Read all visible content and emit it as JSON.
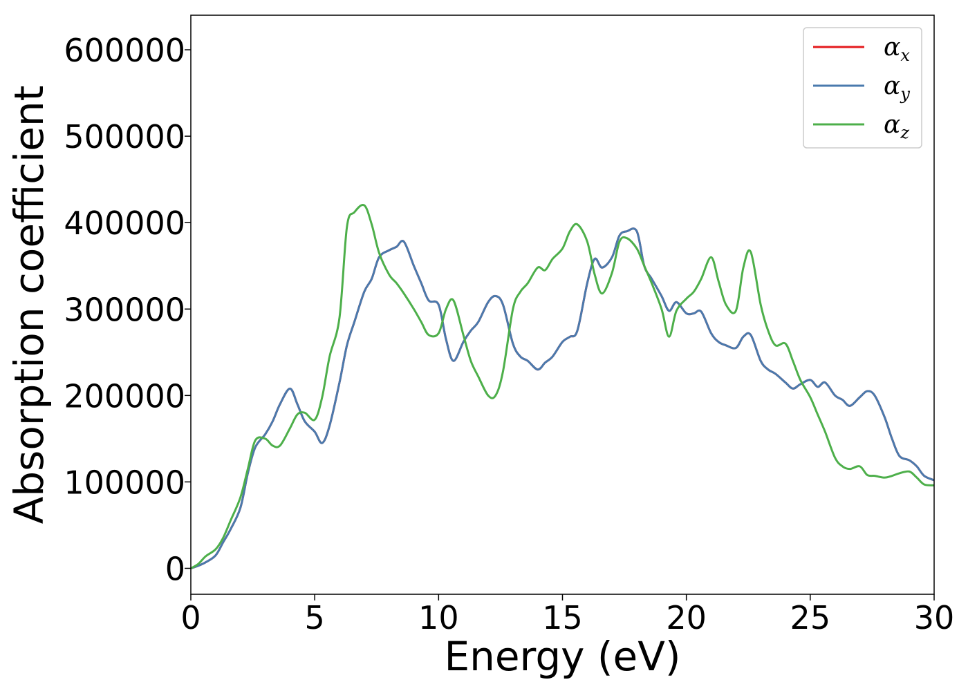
{
  "chart_data": {
    "type": "line",
    "title": "",
    "xlabel": "Energy (eV)",
    "ylabel": "Absorption coefficient",
    "xlim": [
      0,
      30
    ],
    "ylim": [
      -30000,
      640000
    ],
    "xticks": [
      0,
      5,
      10,
      15,
      20,
      25,
      30
    ],
    "xtick_labels": [
      "0",
      "5",
      "10",
      "15",
      "20",
      "25",
      "30"
    ],
    "yticks": [
      0,
      100000,
      200000,
      300000,
      400000,
      500000,
      600000
    ],
    "ytick_labels": [
      "0",
      "100000",
      "200000",
      "300000",
      "400000",
      "500000",
      "600000"
    ],
    "grid": false,
    "legend_position": "top-right",
    "series": [
      {
        "name": "α",
        "subscript": "x",
        "color": "#e41a1c",
        "x": [
          0,
          0.3,
          0.6,
          1.0,
          1.3,
          1.6,
          2.0,
          2.3,
          2.6,
          3.0,
          3.3,
          3.6,
          4.0,
          4.3,
          4.6,
          5.0,
          5.3,
          5.6,
          6.0,
          6.3,
          6.6,
          7.0,
          7.3,
          7.6,
          8.0,
          8.3,
          8.6,
          9.0,
          9.3,
          9.6,
          10.0,
          10.3,
          10.6,
          11.0,
          11.3,
          11.6,
          12.0,
          12.3,
          12.6,
          13.0,
          13.3,
          13.6,
          14.0,
          14.3,
          14.6,
          15.0,
          15.3,
          15.6,
          16.0,
          16.3,
          16.6,
          17.0,
          17.3,
          17.6,
          18.0,
          18.3,
          18.6,
          19.0,
          19.3,
          19.6,
          20.0,
          20.3,
          20.6,
          21.0,
          21.3,
          21.6,
          22.0,
          22.3,
          22.6,
          23.0,
          23.3,
          23.6,
          24.0,
          24.3,
          24.6,
          25.0,
          25.3,
          25.6,
          26.0,
          26.3,
          26.6,
          27.0,
          27.3,
          27.6,
          28.0,
          28.3,
          28.6,
          29.0,
          29.3,
          29.6,
          30.0
        ],
        "y": [
          0,
          3000,
          7000,
          15000,
          30000,
          45000,
          70000,
          110000,
          140000,
          155000,
          170000,
          190000,
          208000,
          190000,
          170000,
          158000,
          145000,
          165000,
          215000,
          258000,
          285000,
          320000,
          335000,
          360000,
          368000,
          372000,
          378000,
          350000,
          330000,
          310000,
          305000,
          265000,
          240000,
          262000,
          275000,
          285000,
          308000,
          315000,
          305000,
          260000,
          245000,
          240000,
          230000,
          238000,
          245000,
          262000,
          268000,
          275000,
          330000,
          358000,
          348000,
          360000,
          385000,
          390000,
          390000,
          350000,
          335000,
          315000,
          298000,
          308000,
          295000,
          295000,
          297000,
          272000,
          262000,
          258000,
          255000,
          268000,
          270000,
          240000,
          230000,
          225000,
          215000,
          208000,
          213000,
          218000,
          210000,
          215000,
          200000,
          195000,
          188000,
          198000,
          205000,
          200000,
          175000,
          150000,
          130000,
          125000,
          118000,
          107000,
          102000
        ]
      },
      {
        "name": "α",
        "subscript": "y",
        "color": "#4a7aad",
        "x": [
          0,
          0.3,
          0.6,
          1.0,
          1.3,
          1.6,
          2.0,
          2.3,
          2.6,
          3.0,
          3.3,
          3.6,
          4.0,
          4.3,
          4.6,
          5.0,
          5.3,
          5.6,
          6.0,
          6.3,
          6.6,
          7.0,
          7.3,
          7.6,
          8.0,
          8.3,
          8.6,
          9.0,
          9.3,
          9.6,
          10.0,
          10.3,
          10.6,
          11.0,
          11.3,
          11.6,
          12.0,
          12.3,
          12.6,
          13.0,
          13.3,
          13.6,
          14.0,
          14.3,
          14.6,
          15.0,
          15.3,
          15.6,
          16.0,
          16.3,
          16.6,
          17.0,
          17.3,
          17.6,
          18.0,
          18.3,
          18.6,
          19.0,
          19.3,
          19.6,
          20.0,
          20.3,
          20.6,
          21.0,
          21.3,
          21.6,
          22.0,
          22.3,
          22.6,
          23.0,
          23.3,
          23.6,
          24.0,
          24.3,
          24.6,
          25.0,
          25.3,
          25.6,
          26.0,
          26.3,
          26.6,
          27.0,
          27.3,
          27.6,
          28.0,
          28.3,
          28.6,
          29.0,
          29.3,
          29.6,
          30.0
        ],
        "y": [
          0,
          3000,
          7000,
          15000,
          30000,
          45000,
          70000,
          110000,
          140000,
          155000,
          170000,
          190000,
          208000,
          190000,
          170000,
          158000,
          145000,
          165000,
          215000,
          258000,
          285000,
          320000,
          335000,
          360000,
          368000,
          372000,
          378000,
          350000,
          330000,
          310000,
          305000,
          265000,
          240000,
          262000,
          275000,
          285000,
          308000,
          315000,
          305000,
          260000,
          245000,
          240000,
          230000,
          238000,
          245000,
          262000,
          268000,
          275000,
          330000,
          358000,
          348000,
          360000,
          385000,
          390000,
          390000,
          350000,
          335000,
          315000,
          298000,
          308000,
          295000,
          295000,
          297000,
          272000,
          262000,
          258000,
          255000,
          268000,
          270000,
          240000,
          230000,
          225000,
          215000,
          208000,
          213000,
          218000,
          210000,
          215000,
          200000,
          195000,
          188000,
          198000,
          205000,
          200000,
          175000,
          150000,
          130000,
          125000,
          118000,
          107000,
          102000
        ]
      },
      {
        "name": "α",
        "subscript": "z",
        "color": "#4daf4a",
        "x": [
          0,
          0.3,
          0.6,
          1.0,
          1.3,
          1.6,
          2.0,
          2.3,
          2.6,
          3.0,
          3.3,
          3.6,
          4.0,
          4.3,
          4.6,
          5.0,
          5.3,
          5.6,
          6.0,
          6.3,
          6.6,
          7.0,
          7.3,
          7.6,
          8.0,
          8.3,
          8.6,
          9.0,
          9.3,
          9.6,
          10.0,
          10.3,
          10.6,
          11.0,
          11.3,
          11.6,
          12.0,
          12.3,
          12.6,
          13.0,
          13.3,
          13.6,
          14.0,
          14.3,
          14.6,
          15.0,
          15.3,
          15.6,
          16.0,
          16.3,
          16.6,
          17.0,
          17.3,
          17.6,
          18.0,
          18.3,
          18.6,
          19.0,
          19.3,
          19.6,
          20.0,
          20.3,
          20.6,
          21.0,
          21.3,
          21.6,
          22.0,
          22.3,
          22.6,
          23.0,
          23.3,
          23.6,
          24.0,
          24.3,
          24.6,
          25.0,
          25.3,
          25.6,
          26.0,
          26.3,
          26.6,
          27.0,
          27.3,
          27.6,
          28.0,
          28.3,
          28.6,
          29.0,
          29.3,
          29.6,
          30.0
        ],
        "y": [
          0,
          5000,
          14000,
          22000,
          35000,
          55000,
          82000,
          115000,
          148000,
          150000,
          142000,
          142000,
          162000,
          178000,
          180000,
          172000,
          198000,
          245000,
          290000,
          395000,
          412000,
          420000,
          398000,
          365000,
          340000,
          330000,
          318000,
          300000,
          285000,
          270000,
          272000,
          300000,
          310000,
          270000,
          240000,
          222000,
          200000,
          200000,
          228000,
          300000,
          320000,
          330000,
          348000,
          345000,
          358000,
          370000,
          390000,
          398000,
          378000,
          340000,
          318000,
          342000,
          378000,
          382000,
          370000,
          350000,
          330000,
          300000,
          268000,
          298000,
          312000,
          320000,
          335000,
          360000,
          332000,
          305000,
          298000,
          348000,
          366000,
          305000,
          275000,
          258000,
          260000,
          240000,
          218000,
          198000,
          178000,
          158000,
          128000,
          118000,
          115000,
          118000,
          108000,
          107000,
          105000,
          107000,
          110000,
          112000,
          105000,
          97000,
          96000
        ]
      }
    ]
  }
}
